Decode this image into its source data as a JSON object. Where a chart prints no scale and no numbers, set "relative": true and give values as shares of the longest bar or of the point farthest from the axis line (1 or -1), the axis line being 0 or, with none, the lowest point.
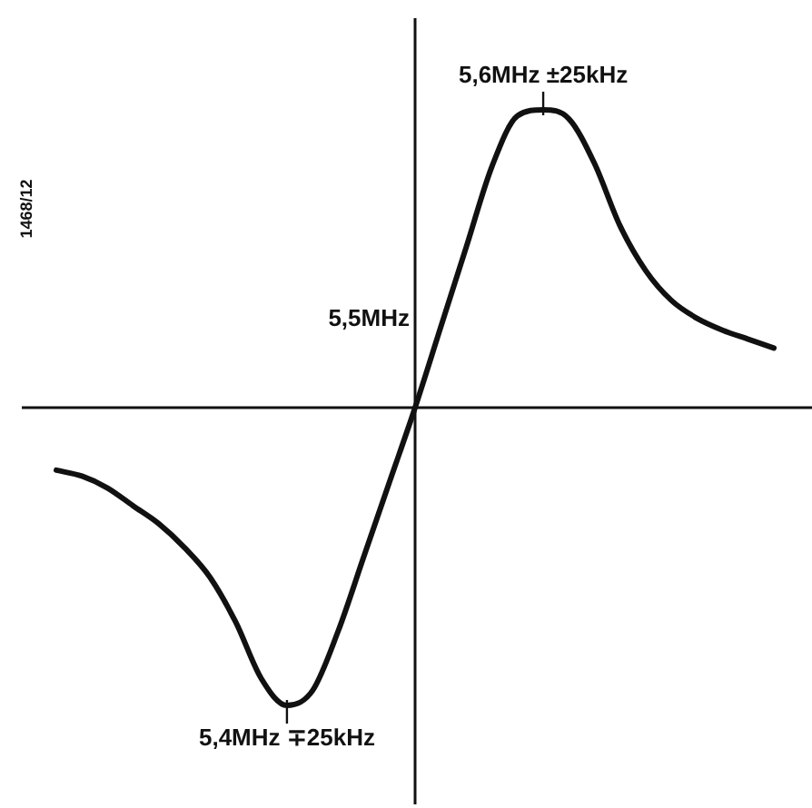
{
  "chart_data": {
    "type": "line",
    "relative": true,
    "color": "#111111",
    "line_style": "solid",
    "marker": "none",
    "grid": false,
    "legend": false,
    "categories": [
      null,
      null,
      null,
      null,
      null,
      null,
      null,
      null,
      null,
      null,
      null,
      null,
      null,
      null,
      null,
      null,
      null,
      null,
      null,
      null,
      null,
      null,
      null,
      null,
      null,
      null,
      null,
      null,
      null
    ],
    "values": [
      -0.21,
      -0.23,
      -0.27,
      -0.33,
      -0.39,
      -0.47,
      -0.57,
      -0.72,
      -0.91,
      -1,
      -0.95,
      -0.75,
      -0.5,
      -0.25,
      0,
      0.27,
      0.54,
      0.81,
      0.98,
      1,
      0.97,
      0.82,
      0.61,
      0.46,
      0.36,
      0.3,
      0.26,
      0.23,
      0.2
    ],
    "ref_lines": [
      {
        "axis": "y",
        "value": 0,
        "color": "#111111"
      }
    ],
    "annotations": [
      {
        "text": "5,6MHz ±25kHz",
        "y": 1
      },
      "5,5MHz",
      {
        "text": "5,4MHz ∓25kHz",
        "y": -1
      },
      "1468/12"
    ]
  }
}
